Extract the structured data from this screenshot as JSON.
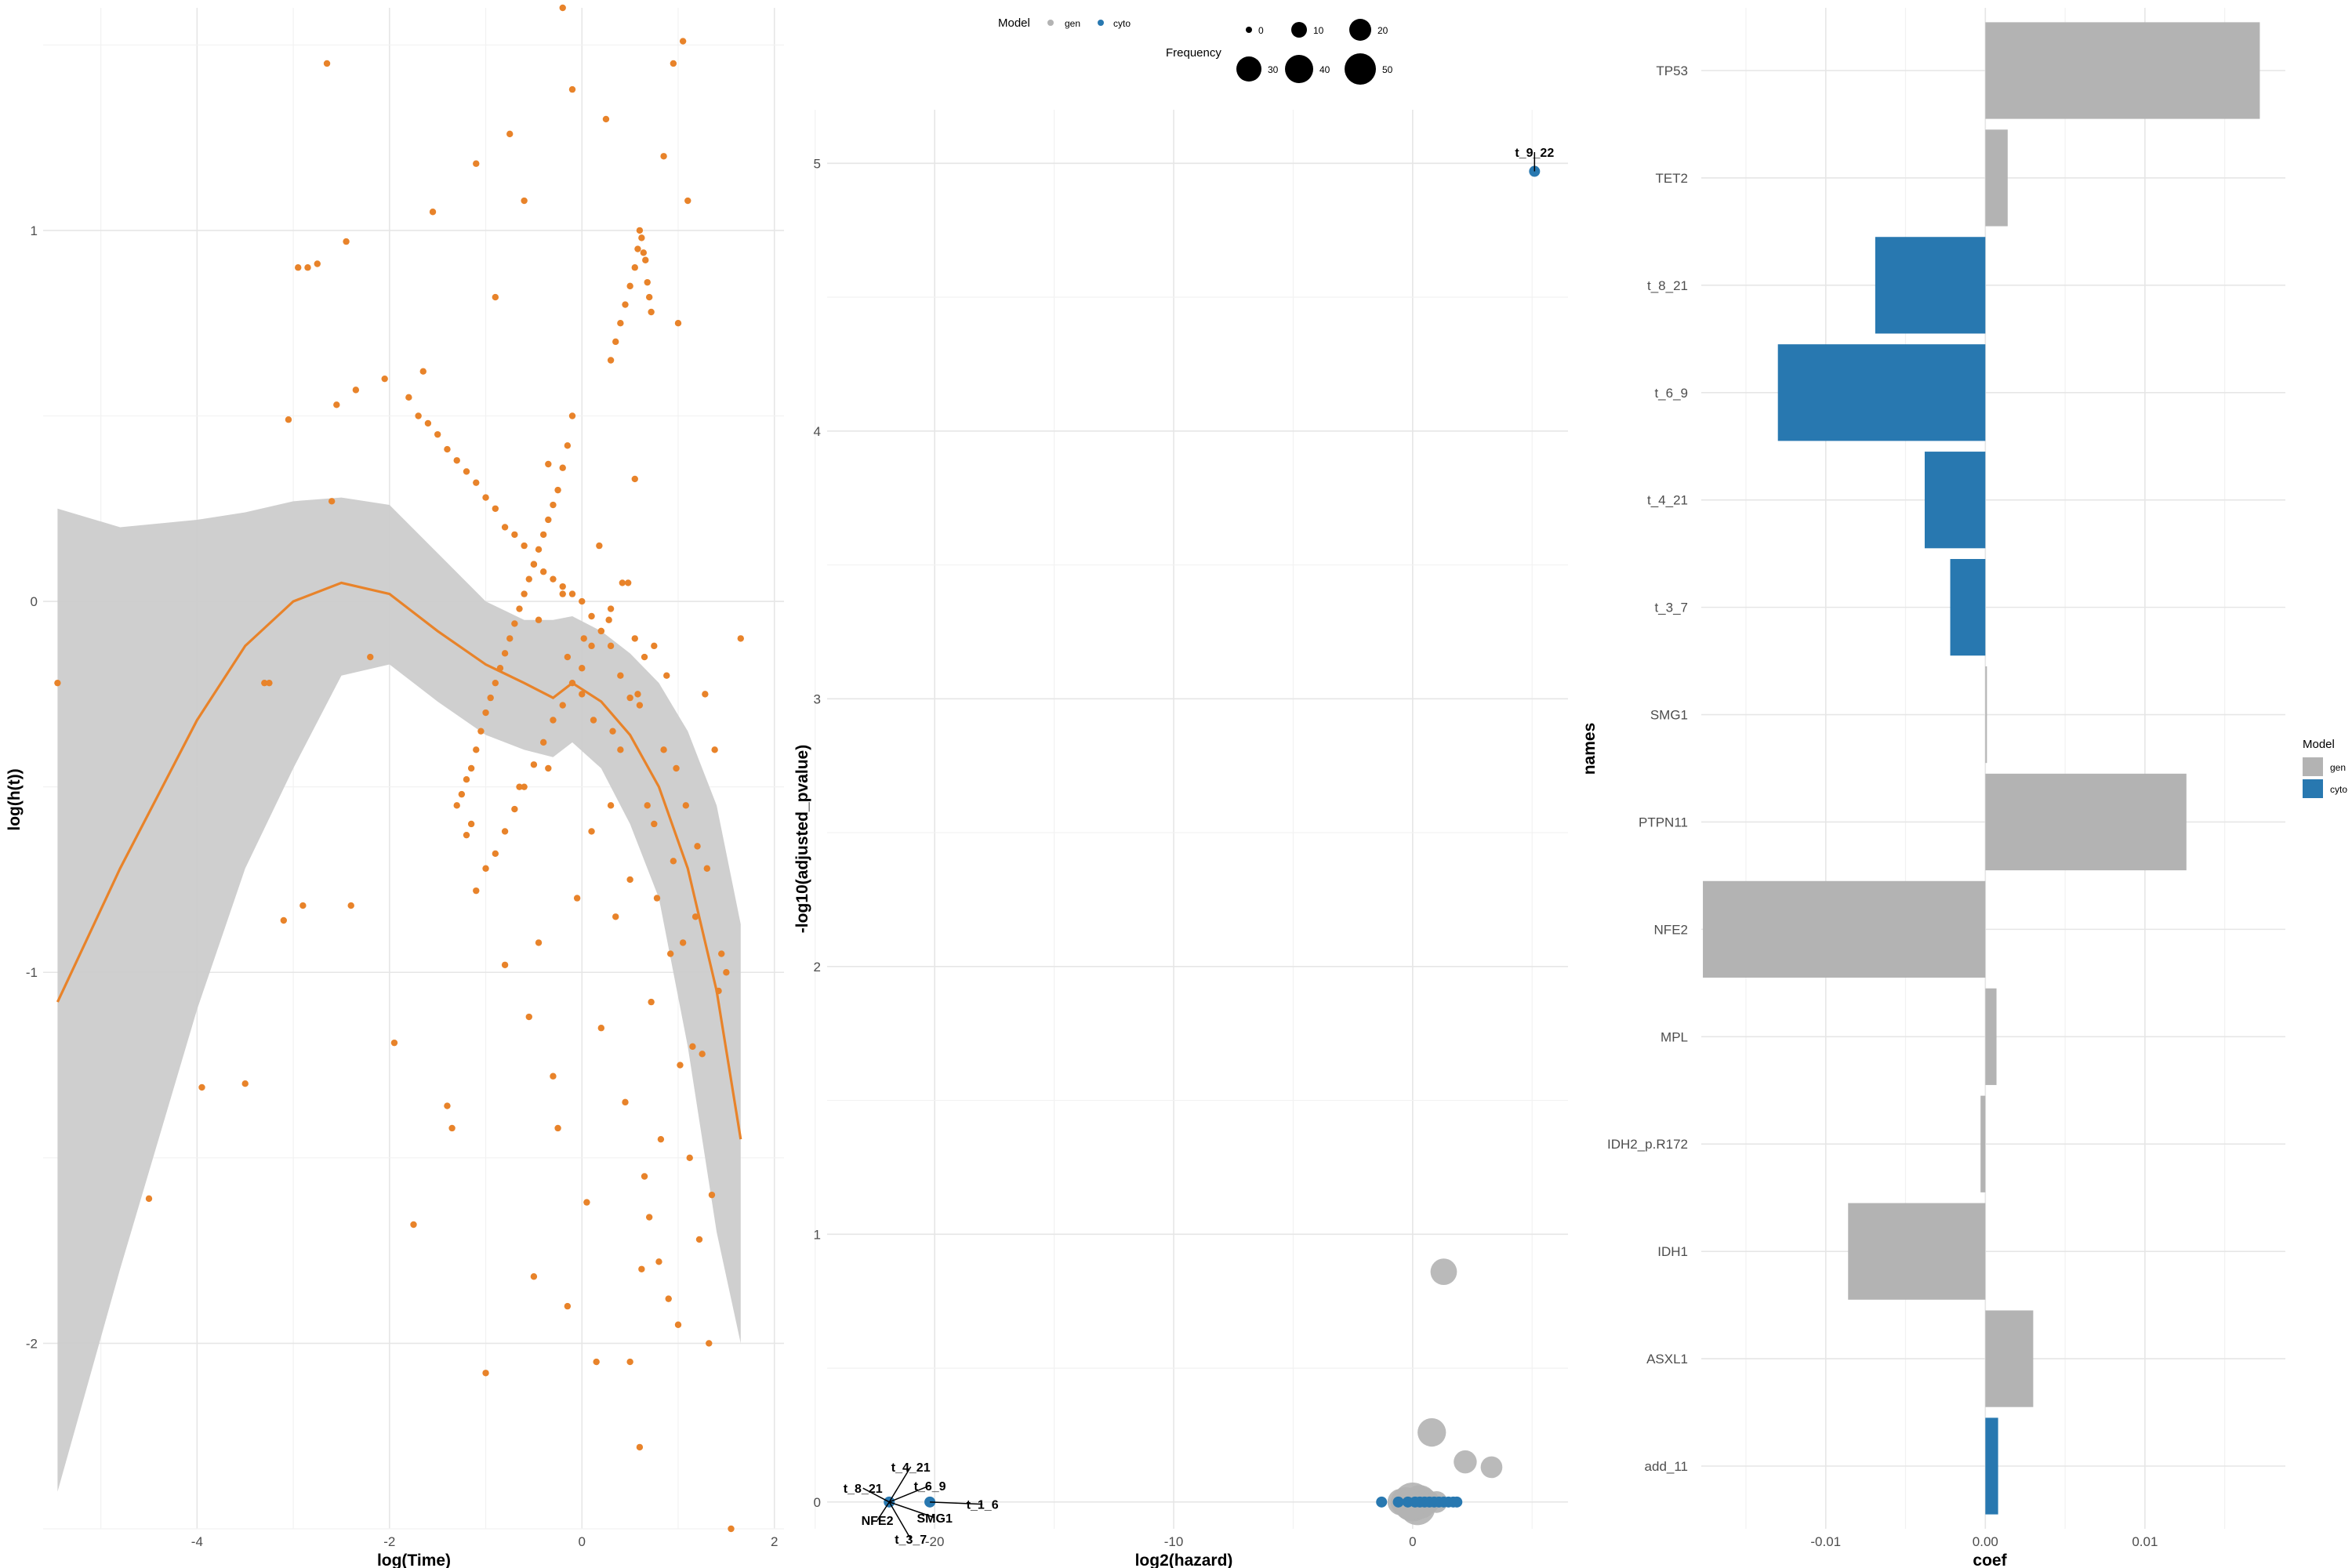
{
  "chart_data": [
    {
      "type": "scatter",
      "xlabel": "log(Time)",
      "ylabel": "log(h(t))",
      "xlim": [
        -5.6,
        2.1
      ],
      "ylim": [
        -2.5,
        1.6
      ],
      "xticks": [
        -4,
        -2,
        0,
        2
      ],
      "yticks": [
        -2,
        -1,
        0,
        1
      ],
      "point_color": "#E8832A",
      "smooth": {
        "color": "#E8832A",
        "band_color": "#cccccc",
        "x": [
          -5.45,
          -4.8,
          -4.0,
          -3.5,
          -3.0,
          -2.5,
          -2.0,
          -1.5,
          -1.0,
          -0.6,
          -0.3,
          -0.1,
          0.2,
          0.5,
          0.8,
          1.1,
          1.4,
          1.65
        ],
        "y": [
          -1.08,
          -0.72,
          -0.32,
          -0.12,
          0.0,
          0.05,
          0.02,
          -0.08,
          -0.17,
          -0.22,
          -0.26,
          -0.22,
          -0.27,
          -0.36,
          -0.5,
          -0.72,
          -1.05,
          -1.45
        ],
        "lower": [
          -2.4,
          -1.8,
          -1.1,
          -0.72,
          -0.45,
          -0.2,
          -0.17,
          -0.27,
          -0.36,
          -0.4,
          -0.42,
          -0.38,
          -0.45,
          -0.6,
          -0.8,
          -1.2,
          -1.7,
          -2.0
        ],
        "upper": [
          0.25,
          0.2,
          0.22,
          0.24,
          0.27,
          0.28,
          0.26,
          0.13,
          0.0,
          -0.05,
          -0.05,
          -0.04,
          -0.08,
          -0.14,
          -0.22,
          -0.35,
          -0.55,
          -0.87
        ]
      },
      "points": {
        "x": [
          -5.45,
          -4.5,
          -3.95,
          -3.5,
          -3.05,
          -2.95,
          -2.75,
          -2.65,
          -2.55,
          -2.45,
          -2.35,
          -2.05,
          -1.95,
          -1.75,
          -1.55,
          -1.4,
          -1.1,
          -1.0,
          -0.9,
          -0.75,
          -0.6,
          -0.5,
          -0.35,
          -0.2,
          -0.1,
          0.25,
          0.4,
          0.55,
          0.6,
          0.75,
          0.85,
          0.95,
          1.0,
          1.05,
          1.1,
          1.2,
          1.3,
          1.5,
          1.65,
          -3.3,
          -3.25,
          -3.1,
          -2.9,
          -2.85,
          -2.6,
          -2.4,
          -2.2,
          -1.65,
          -1.35,
          -1.2,
          -1.15,
          -0.8,
          -0.55,
          -0.45,
          -0.3,
          -0.25,
          -0.15,
          -0.05,
          0.05,
          0.15,
          0.3,
          0.45,
          0.5,
          0.65,
          0.7,
          0.8,
          0.9,
          1.0,
          1.15,
          1.25,
          1.35,
          1.45,
          1.55,
          0.1,
          0.2,
          0.35,
          0.5,
          0.62,
          0.72,
          0.82,
          0.92,
          1.02,
          1.12,
          1.22,
          1.32,
          1.42,
          -0.65,
          -0.35,
          -0.15,
          0.02,
          0.18,
          0.32,
          0.48,
          0.58,
          0.68,
          0.78,
          0.88,
          0.98,
          1.08,
          1.18,
          1.28,
          1.38,
          -0.45,
          -0.2,
          0.0,
          0.12,
          0.28,
          0.42,
          0.55,
          0.65,
          0.75,
          0.85,
          0.95,
          1.05,
          -1.8,
          -1.7,
          -1.6,
          -1.5,
          -1.4,
          -1.3,
          -1.2,
          -1.1,
          -1.0,
          -0.9,
          -0.8,
          -0.7,
          -0.6,
          -0.5,
          -0.4,
          -0.3,
          -0.2,
          -0.1,
          0.0,
          0.1,
          0.2,
          0.3,
          0.4,
          0.5,
          0.6,
          -1.3,
          -1.25,
          -1.2,
          -1.15,
          -1.1,
          -1.05,
          -1.0,
          -0.95,
          -0.9,
          -0.85,
          -0.8,
          -0.75,
          -0.7,
          -0.65,
          -0.6,
          -0.55,
          -0.5,
          -0.45,
          -0.4,
          -0.35,
          -0.3,
          -0.25,
          -0.2,
          -0.15,
          -0.1,
          0.3,
          0.35,
          0.4,
          0.45,
          0.5,
          0.55,
          0.58,
          0.6,
          0.62,
          0.64,
          0.66,
          0.68,
          0.7,
          0.72,
          -1.1,
          -1.0,
          -0.9,
          -0.8,
          -0.7,
          -0.6,
          -0.5,
          -0.4,
          -0.3,
          -0.2,
          -0.1,
          0.0,
          0.1,
          0.2,
          0.3
        ],
        "y": [
          -0.22,
          -1.61,
          -1.31,
          -1.3,
          0.49,
          0.9,
          0.91,
          1.45,
          0.53,
          0.97,
          0.57,
          0.6,
          -1.19,
          -1.68,
          1.05,
          -1.36,
          1.18,
          -2.08,
          0.82,
          1.26,
          1.08,
          -1.82,
          0.37,
          1.6,
          1.38,
          1.3,
          -0.4,
          0.33,
          -2.28,
          -0.12,
          1.2,
          1.45,
          0.75,
          1.51,
          1.08,
          -0.66,
          -0.72,
          -1.0,
          -0.1,
          -0.22,
          -0.22,
          -0.86,
          -0.82,
          0.9,
          0.27,
          -0.82,
          -0.15,
          0.62,
          -1.42,
          -0.63,
          -0.6,
          -0.98,
          -1.12,
          -0.92,
          -1.28,
          -1.42,
          -1.9,
          -0.8,
          -1.62,
          -2.05,
          -0.55,
          -1.35,
          -2.05,
          -1.55,
          -1.66,
          -1.78,
          -1.88,
          -1.95,
          -1.2,
          -1.22,
          -1.6,
          -0.95,
          -2.5,
          -0.62,
          -1.15,
          -0.85,
          -0.75,
          -1.8,
          -1.08,
          -1.45,
          -0.95,
          -1.25,
          -1.5,
          -1.72,
          -2.0,
          -1.05,
          -0.5,
          -0.45,
          -0.15,
          -0.1,
          0.15,
          -0.35,
          0.05,
          -0.25,
          -0.55,
          -0.8,
          -0.2,
          -0.45,
          -0.55,
          -0.85,
          -0.25,
          -0.4,
          -0.05,
          0.02,
          -0.25,
          -0.32,
          -0.05,
          0.05,
          -0.1,
          -0.15,
          -0.6,
          -0.4,
          -0.7,
          -0.92,
          0.55,
          0.5,
          0.48,
          0.45,
          0.41,
          0.38,
          0.35,
          0.32,
          0.28,
          0.25,
          0.2,
          0.18,
          0.15,
          0.1,
          0.08,
          0.06,
          0.04,
          0.02,
          0.0,
          -0.04,
          -0.08,
          -0.12,
          -0.2,
          -0.26,
          -0.28,
          -0.55,
          -0.52,
          -0.48,
          -0.45,
          -0.4,
          -0.35,
          -0.3,
          -0.26,
          -0.22,
          -0.18,
          -0.14,
          -0.1,
          -0.06,
          -0.02,
          0.02,
          0.06,
          0.1,
          0.14,
          0.18,
          0.22,
          0.26,
          0.3,
          0.36,
          0.42,
          0.5,
          0.65,
          0.7,
          0.75,
          0.8,
          0.85,
          0.9,
          0.95,
          1.0,
          0.98,
          0.94,
          0.92,
          0.86,
          0.82,
          0.78,
          -0.78,
          -0.72,
          -0.68,
          -0.62,
          -0.56,
          -0.5,
          -0.44,
          -0.38,
          -0.32,
          -0.28,
          -0.22,
          -0.18,
          -0.12,
          -0.08,
          -0.02
        ]
      }
    },
    {
      "type": "scatter",
      "xlabel": "log2(hazard)",
      "ylabel": "-log10(adjusted_pvalue)",
      "xlim": [
        -24.5,
        6.5
      ],
      "ylim": [
        -0.1,
        5.2
      ],
      "xticks": [
        -20,
        -10,
        0
      ],
      "yticks": [
        0,
        1,
        2,
        3,
        4,
        5
      ],
      "legend": {
        "model_title": "Model",
        "model_entries": [
          {
            "label": "gen",
            "color": "#b3b3b3"
          },
          {
            "label": "cyto",
            "color": "#2878B0"
          }
        ],
        "size_title": "Frequency",
        "size_entries": [
          "0",
          "10",
          "20",
          "30",
          "40",
          "50"
        ]
      },
      "gen_points": {
        "x": [
          1.3,
          0.8,
          2.2,
          3.3,
          0.0,
          -0.3,
          0.3,
          0.6,
          -0.5,
          0.5,
          1.0,
          0.2,
          -0.1
        ],
        "y": [
          0.86,
          0.26,
          0.15,
          0.13,
          0.0,
          0.0,
          0.0,
          0.0,
          0.0,
          0.01,
          0.0,
          -0.02,
          -0.01
        ],
        "freq": [
          18,
          22,
          12,
          10,
          50,
          25,
          35,
          15,
          18,
          12,
          10,
          40,
          30
        ]
      },
      "cyto_points": {
        "x": [
          5.1,
          -1.3,
          -0.6,
          -0.2,
          0.1,
          0.3,
          0.5,
          0.7,
          0.9,
          1.1,
          1.3,
          1.5,
          1.7,
          1.85
        ],
        "y": [
          4.97,
          0.0,
          0.0,
          0.0,
          0.0,
          0.0,
          0.0,
          0.0,
          0.0,
          0.0,
          0.0,
          0.0,
          0.0,
          0.0
        ],
        "freq": [
          10,
          10,
          10,
          10,
          10,
          10,
          10,
          10,
          10,
          10,
          10,
          10,
          10,
          10
        ]
      },
      "labeled_points": [
        {
          "label": "t_9_22",
          "x": 5.1,
          "y": 4.97,
          "lx": 5.1,
          "ly": 5.03
        },
        {
          "label": "t_4_21",
          "x": -21.9,
          "y": 0.0,
          "lx": -21.0,
          "ly": 0.12
        },
        {
          "label": "t_8_21",
          "x": -21.9,
          "y": 0.0,
          "lx": -23.0,
          "ly": 0.04
        },
        {
          "label": "t_6_9",
          "x": -21.9,
          "y": 0.0,
          "lx": -20.2,
          "ly": 0.05
        },
        {
          "label": "t_1_6",
          "x": -20.2,
          "y": 0.0,
          "lx": -18.0,
          "ly": -0.02
        },
        {
          "label": "NFE2",
          "x": -21.9,
          "y": 0.0,
          "lx": -22.4,
          "ly": -0.08
        },
        {
          "label": "SMG1",
          "x": -21.9,
          "y": 0.0,
          "lx": -20.0,
          "ly": -0.07
        },
        {
          "label": "t_3_7",
          "x": -21.9,
          "y": 0.0,
          "lx": -21.0,
          "ly": -0.15
        }
      ]
    },
    {
      "type": "bar",
      "orientation": "horizontal",
      "xlabel": "coef",
      "ylabel": "names",
      "xlim": [
        -0.0178,
        0.0188
      ],
      "xticks": [
        -0.01,
        0.0,
        0.01
      ],
      "xtick_labels": [
        "-0.01",
        "0.00",
        "0.01"
      ],
      "categories": [
        "TP53",
        "TET2",
        "t_8_21",
        "t_6_9",
        "t_4_21",
        "t_3_7",
        "SMG1",
        "PTPN11",
        "NFE2",
        "MPL",
        "IDH2_p.R172",
        "IDH1",
        "ASXL1",
        "add_11"
      ],
      "values": [
        0.0172,
        0.0014,
        -0.0069,
        -0.013,
        -0.0038,
        -0.0022,
        0.0001,
        0.0126,
        -0.0177,
        0.0007,
        -0.0003,
        -0.0086,
        0.003,
        0.0008
      ],
      "model": [
        "gen",
        "gen",
        "cyto",
        "cyto",
        "cyto",
        "cyto",
        "gen",
        "gen",
        "gen",
        "gen",
        "gen",
        "gen",
        "gen",
        "cyto"
      ],
      "colors": {
        "gen": "#b3b3b3",
        "cyto": "#2878B0"
      },
      "legend": {
        "title": "Model",
        "entries": [
          {
            "label": "gen",
            "color": "#b3b3b3"
          },
          {
            "label": "cyto",
            "color": "#2878B0"
          }
        ]
      }
    }
  ]
}
